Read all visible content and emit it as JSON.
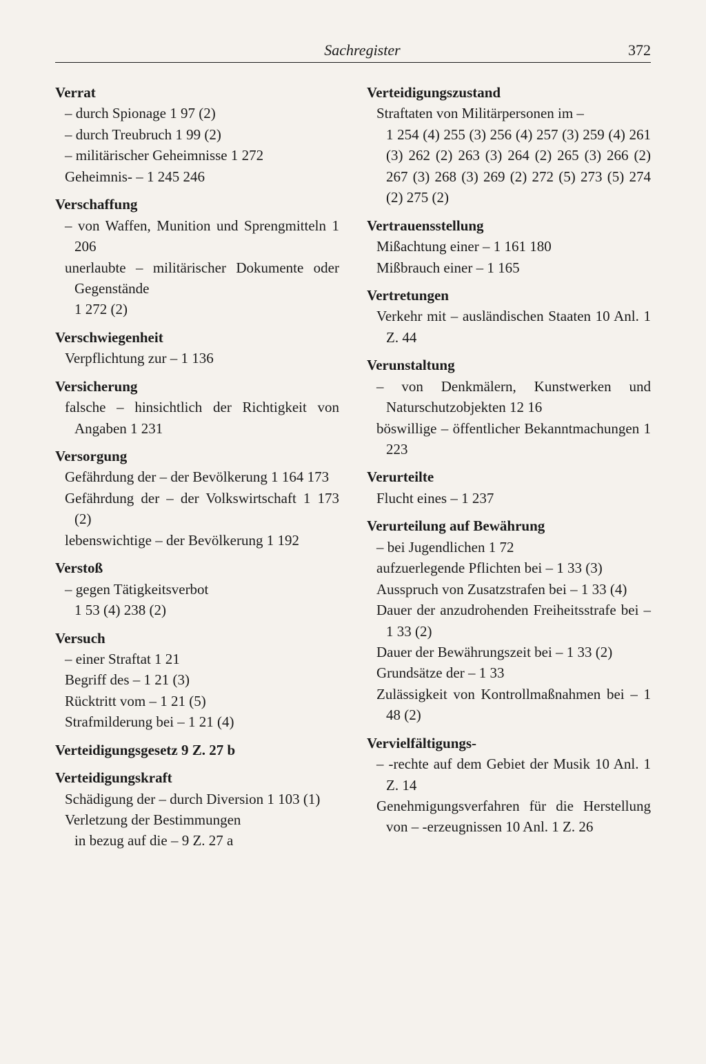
{
  "header": {
    "title": "Sachregister",
    "page": "372"
  },
  "left": {
    "e1": {
      "term": "Verrat",
      "s1": "– durch Spionage   1  97 (2)",
      "s2": "– durch Treubruch   1  99 (2)",
      "s3": "– militärischer Geheimnisse   1 272",
      "s4": "Geheimnis- –   1  245 246"
    },
    "e2": {
      "term": "Verschaffung",
      "s1": "– von Waffen, Munition und Sprengmitteln   1  206",
      "s2": "unerlaubte – militärischer Dokumente oder Gegenstände",
      "s3": "1  272 (2)"
    },
    "e3": {
      "term": "Verschwiegenheit",
      "s1": "Verpflichtung zur –   1  136"
    },
    "e4": {
      "term": "Versicherung",
      "s1": "falsche – hinsichtlich der Richtigkeit von Angaben   1  231"
    },
    "e5": {
      "term": "Versorgung",
      "s1": "Gefährdung der – der Bevölkerung 1  164 173",
      "s2": "Gefährdung der – der Volkswirtschaft   1  173 (2)",
      "s3": "lebenswichtige – der Bevölkerung 1  192"
    },
    "e6": {
      "term": "Verstoß",
      "s1": "– gegen Tätigkeitsverbot",
      "s2": "1  53 (4) 238 (2)"
    },
    "e7": {
      "term": "Versuch",
      "s1": "– einer Straftat   1  21",
      "s2": "Begriff des –   1  21 (3)",
      "s3": "Rücktritt vom –   1  21 (5)",
      "s4": "Strafmilderung bei –   1  21 (4)"
    },
    "e8": {
      "term": "Verteidigungsgesetz   9  Z. 27 b"
    },
    "e9": {
      "term": "Verteidigungskraft",
      "s1": "Schädigung der – durch Diversion 1  103 (1)",
      "s2": "Verletzung der Bestimmungen",
      "s3": "in bezug auf die –   9  Z. 27 a"
    }
  },
  "right": {
    "e1": {
      "term": "Verteidigungszustand",
      "s1": "Straftaten von Militärpersonen im –",
      "s2": "1  254 (4)  255 (3)  256 (4)  257 (3) 259 (4)   261 (3)   262 (2)   263 (3) 264 (2)   265 (3)   266 (2)   267 (3) 268 (3)   269 (2)   272 (5)   273 (5) 274 (2) 275 (2)"
    },
    "e2": {
      "term": "Vertrauensstellung",
      "s1": "Mißachtung einer –   1  161  180",
      "s2": "Mißbrauch einer –   1  165"
    },
    "e3": {
      "term": "Vertretungen",
      "s1": "Verkehr mit – ausländischen Staaten   10  Anl. 1 Z. 44"
    },
    "e4": {
      "term": "Verunstaltung",
      "s1": "– von Denkmälern, Kunstwerken und Naturschutzobjekten   12 16",
      "s2": "böswillige – öffentlicher Bekanntmachungen   1  223"
    },
    "e5": {
      "term": "Verurteilte",
      "s1": "Flucht eines –   1  237"
    },
    "e6": {
      "term": "Verurteilung auf Bewährung",
      "s1": "– bei Jugendlichen   1  72",
      "s2": "aufzuerlegende Pflichten bei – 1  33 (3)",
      "s3": "Ausspruch von Zusatzstrafen bei – 1  33 (4)",
      "s4": "Dauer der anzudrohenden Freiheitsstrafe bei –   1  33 (2)",
      "s5": "Dauer der Bewährungszeit bei – 1  33 (2)",
      "s6": "Grundsätze der –   1  33",
      "s7": "Zulässigkeit von Kontrollmaßnahmen bei –   1  48 (2)"
    },
    "e7": {
      "term": "Vervielfältigungs-",
      "s1": "– -rechte auf dem Gebiet der Musik 10  Anl. 1 Z. 14",
      "s2": "Genehmigungsverfahren für die Herstellung von – -erzeugnissen 10  Anl. 1 Z. 26"
    }
  }
}
